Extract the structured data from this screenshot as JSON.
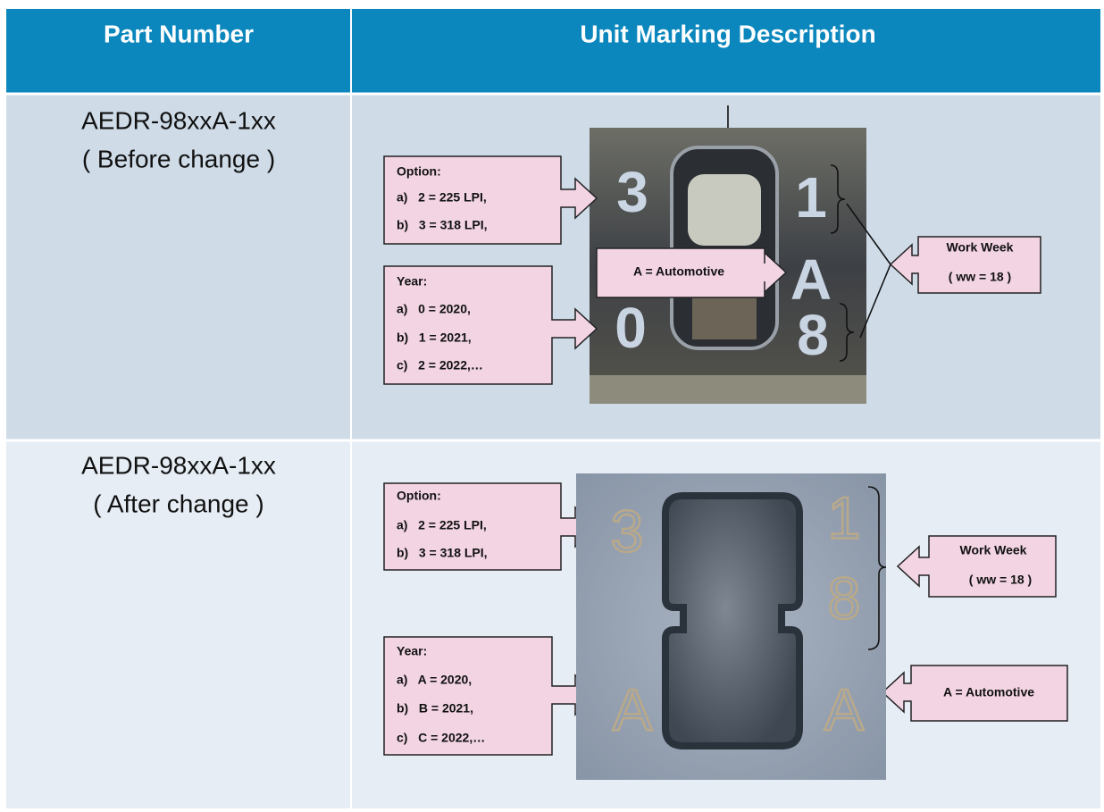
{
  "table": {
    "headers": [
      "Part Number",
      "Unit Marking Description"
    ],
    "rows": [
      {
        "part_number": "AEDR-98xxA-1xx",
        "note": "( Before change )",
        "chip_marks": [
          "3",
          "1",
          "A",
          "0",
          "8"
        ],
        "callouts": {
          "option": [
            "Option:",
            "a)   2 = 225 LPI,",
            "b)   3 = 318 LPI,"
          ],
          "year": [
            "Year:",
            "a)   0 = 2020,",
            "b)   1 = 2021,",
            "c)   2 = 2022,…"
          ],
          "automotive": "A = Automotive",
          "work_week": [
            "Work Week",
            "( ww = 18 )"
          ]
        }
      },
      {
        "part_number": "AEDR-98xxA-1xx",
        "note": "( After change )",
        "chip_marks": [
          "3",
          "1",
          "8",
          "A",
          "A"
        ],
        "callouts": {
          "option": [
            "Option:",
            "a)   2 = 225 LPI,",
            "b)   3 = 318 LPI,"
          ],
          "year": [
            "Year:",
            "a)   A = 2020,",
            "b)   B = 2021,",
            "c)   C = 2022,…"
          ],
          "automotive": "A = Automotive",
          "work_week": [
            "Work Week",
            "( ww = 18 )"
          ]
        }
      }
    ]
  }
}
